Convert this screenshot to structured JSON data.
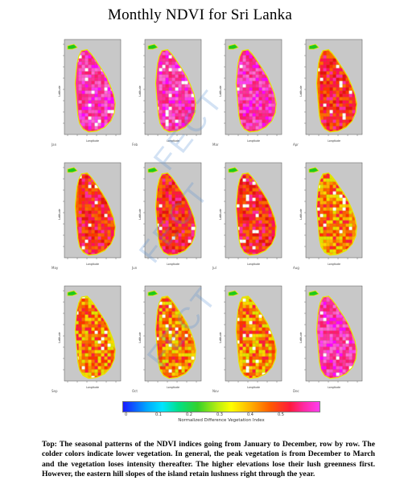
{
  "title": "Monthly NDVI for Sri Lanka",
  "watermark": "FECT",
  "panels": [
    {
      "month": "Jan",
      "palette": "magenta",
      "axis_x": "Longitude",
      "axis_y": "Latitude"
    },
    {
      "month": "Feb",
      "palette": "magenta",
      "axis_x": "Longitude",
      "axis_y": "Latitude"
    },
    {
      "month": "Mar",
      "palette": "magenta",
      "axis_x": "Longitude",
      "axis_y": "Latitude"
    },
    {
      "month": "Apr",
      "palette": "red",
      "axis_x": "Longitude",
      "axis_y": "Latitude"
    },
    {
      "month": "May",
      "palette": "red",
      "axis_x": "Longitude",
      "axis_y": "Latitude"
    },
    {
      "month": "Jun",
      "palette": "red",
      "axis_x": "Longitude",
      "axis_y": "Latitude"
    },
    {
      "month": "Jul",
      "palette": "red",
      "axis_x": "Longitude",
      "axis_y": "Latitude"
    },
    {
      "month": "Aug",
      "palette": "orange",
      "axis_x": "Longitude",
      "axis_y": "Latitude"
    },
    {
      "month": "Sep",
      "palette": "orange",
      "axis_x": "Longitude",
      "axis_y": "Latitude"
    },
    {
      "month": "Oct",
      "palette": "orange",
      "axis_x": "Longitude",
      "axis_y": "Latitude"
    },
    {
      "month": "Nov",
      "palette": "orange",
      "axis_x": "Longitude",
      "axis_y": "Latitude"
    },
    {
      "month": "Dec",
      "palette": "magenta",
      "axis_x": "Longitude",
      "axis_y": "Latitude"
    }
  ],
  "colorbar": {
    "ticks": [
      "0",
      "0.1",
      "0.2",
      "0.3",
      "0.4",
      "0.5"
    ],
    "label": "Normalized Difference Vegetation Index"
  },
  "caption": "Top: The seasonal patterns of the NDVI indices going from January to December, row by row. The colder colors indicate lower vegetation. In general, the peak vegetation is from December to March and the vegetation loses intensity thereafter. The higher elevations lose their lush greenness first. However, the eastern hill slopes of the island retain lushness right through the year."
}
